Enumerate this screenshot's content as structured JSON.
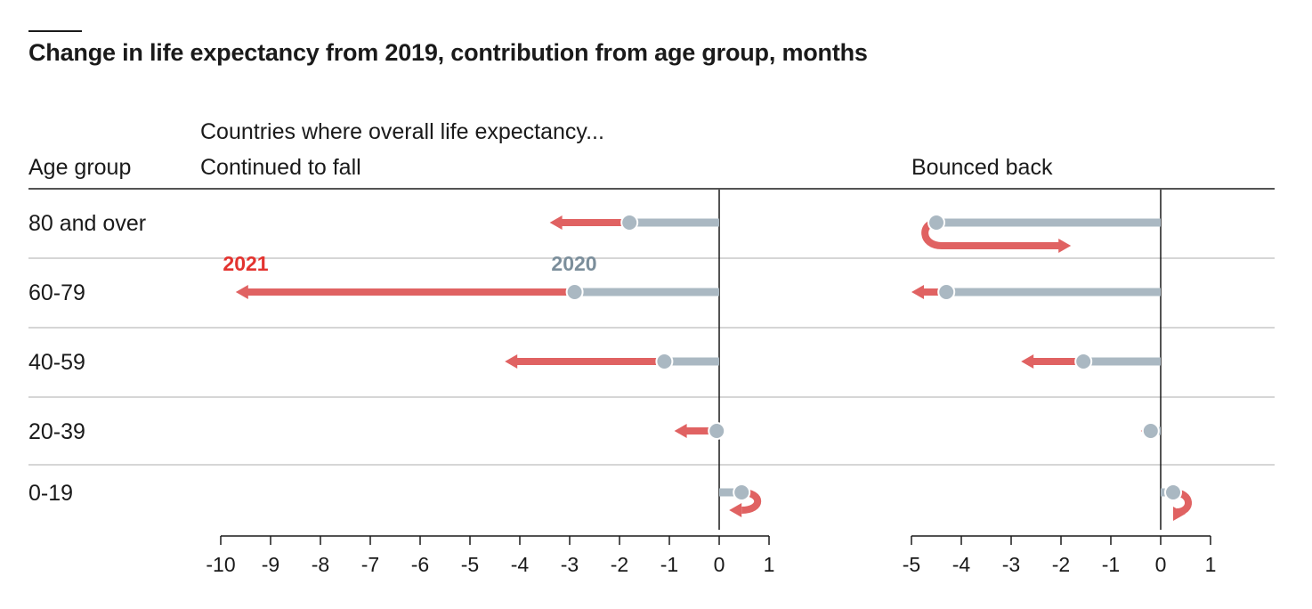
{
  "title": "Change in life expectancy from 2019, contribution from age group, months",
  "header": {
    "age_group_label": "Age group",
    "supertitle": "Countries where overall life expectancy...",
    "panel_left_title": "Continued to fall",
    "panel_right_title": "Bounced back"
  },
  "legend": {
    "label_2021": "2021",
    "label_2020": "2020"
  },
  "colors": {
    "y2020": "#aab8c2",
    "y2021": "#e06262",
    "label2021": "#e3332f",
    "label2020": "#7b8e9b",
    "grid": "#c8c8c8",
    "axis": "#1a1a1a"
  },
  "chart_data": [
    {
      "type": "arrow-dot",
      "panel": "Continued to fall",
      "categories": [
        "80 and over",
        "60-79",
        "40-59",
        "20-39",
        "0-19"
      ],
      "series": [
        {
          "name": "2020",
          "values": [
            -1.8,
            -2.9,
            -1.1,
            -0.05,
            0.45
          ]
        },
        {
          "name": "2021",
          "values": [
            -3.4,
            -9.7,
            -4.3,
            -0.9,
            0.2
          ]
        }
      ],
      "xlim": [
        -10,
        1
      ],
      "ticks": [
        "-10",
        "-9",
        "-8",
        "-7",
        "-6",
        "-5",
        "-4",
        "-3",
        "-2",
        "-1",
        "0",
        "1"
      ]
    },
    {
      "type": "arrow-dot",
      "panel": "Bounced back",
      "categories": [
        "80 and over",
        "60-79",
        "40-59",
        "20-39",
        "0-19"
      ],
      "series": [
        {
          "name": "2020",
          "values": [
            -4.5,
            -4.3,
            -1.55,
            -0.2,
            0.25
          ]
        },
        {
          "name": "2021",
          "values": [
            -1.8,
            -5.0,
            -2.8,
            -0.4,
            0.25
          ]
        }
      ],
      "xlim": [
        -5,
        1
      ],
      "ticks": [
        "-5",
        "-4",
        "-3",
        "-2",
        "-1",
        "0",
        "1"
      ]
    }
  ]
}
